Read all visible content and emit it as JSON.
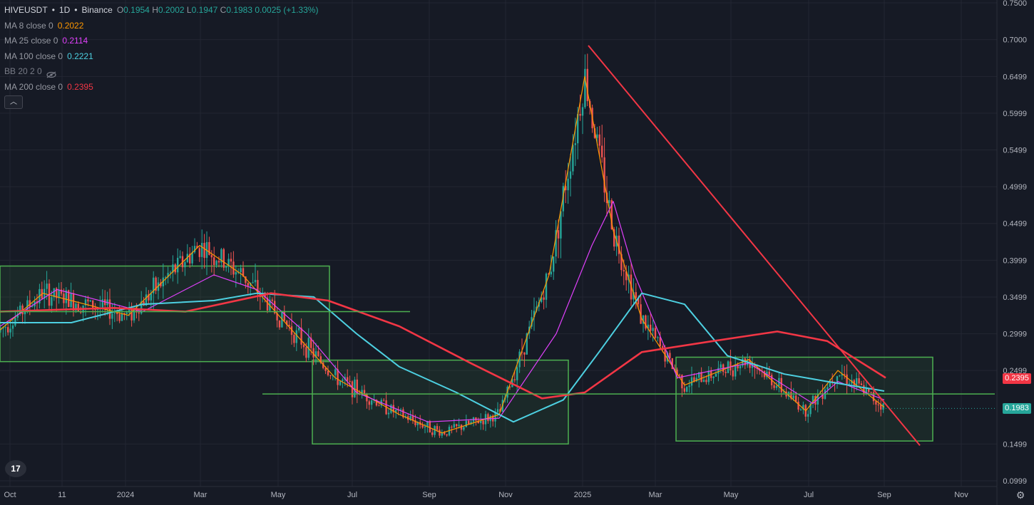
{
  "legend": {
    "symbol": "HIVEUSDT",
    "interval": "1D",
    "exchange": "Binance",
    "open_label": "O",
    "open": "0.1954",
    "high_label": "H",
    "high": "0.2002",
    "low_label": "L",
    "low": "0.1947",
    "close_label": "C",
    "close": "0.1983",
    "change": "0.0025 (+1.33%)",
    "indicators": [
      {
        "label": "MA 8 close 0",
        "value": "0.2022",
        "color": "#ff9800"
      },
      {
        "label": "MA 25 close 0",
        "value": "0.2114",
        "color": "#e040fb"
      },
      {
        "label": "MA 100 close 0",
        "value": "0.2221",
        "color": "#4dd0e1"
      },
      {
        "label": "BB 20 2 0",
        "value": "",
        "color": "#787b86"
      },
      {
        "label": "MA 200 close 0",
        "value": "0.2395",
        "color": "#f23645"
      }
    ]
  },
  "price_axis": {
    "ticks": [
      "0.7500",
      "0.7000",
      "0.6499",
      "0.5999",
      "0.5499",
      "0.4999",
      "0.4499",
      "0.3999",
      "0.3499",
      "0.2999",
      "0.2499",
      "0.1499",
      "0.0999"
    ],
    "tags": [
      {
        "text": "0.2395",
        "color": "#f23645"
      },
      {
        "text": "0.1983",
        "color": "#26a69a"
      }
    ]
  },
  "time_axis": {
    "labels": [
      "Oct",
      "11",
      "2024",
      "Mar",
      "May",
      "Jul",
      "Sep",
      "Nov",
      "2025",
      "Mar",
      "May",
      "Jul",
      "Sep",
      "Nov"
    ]
  },
  "colors": {
    "background": "#161a25",
    "grid": "#232632",
    "up": "#26a69a",
    "down": "#ef5350",
    "zone": "#4caf50",
    "trendline": "#f23645"
  },
  "chart_data": {
    "type": "line",
    "title": "",
    "symbol": "HIVEUSDT",
    "ylim": [
      0.09,
      0.755
    ],
    "x_labels": [
      "Oct",
      "11",
      "2024",
      "Mar",
      "May",
      "Jul",
      "Sep",
      "Nov",
      "2025",
      "Mar",
      "May",
      "Jul",
      "Sep",
      "Nov"
    ],
    "series": [
      {
        "name": "MA 8 close 0",
        "color": "#ff9800",
        "points": [
          [
            0,
            0.305
          ],
          [
            60,
            0.355
          ],
          [
            180,
            0.325
          ],
          [
            280,
            0.42
          ],
          [
            340,
            0.38
          ],
          [
            400,
            0.315
          ],
          [
            470,
            0.24
          ],
          [
            560,
            0.19
          ],
          [
            620,
            0.165
          ],
          [
            700,
            0.19
          ],
          [
            770,
            0.38
          ],
          [
            820,
            0.65
          ],
          [
            860,
            0.44
          ],
          [
            900,
            0.32
          ],
          [
            960,
            0.23
          ],
          [
            1050,
            0.265
          ],
          [
            1130,
            0.195
          ],
          [
            1175,
            0.25
          ],
          [
            1240,
            0.2
          ]
        ]
      },
      {
        "name": "MA 25 close 0",
        "color": "#e040fb",
        "points": [
          [
            0,
            0.31
          ],
          [
            80,
            0.36
          ],
          [
            200,
            0.33
          ],
          [
            300,
            0.38
          ],
          [
            360,
            0.36
          ],
          [
            430,
            0.3
          ],
          [
            500,
            0.22
          ],
          [
            600,
            0.18
          ],
          [
            700,
            0.185
          ],
          [
            780,
            0.3
          ],
          [
            830,
            0.42
          ],
          [
            860,
            0.48
          ],
          [
            890,
            0.38
          ],
          [
            950,
            0.24
          ],
          [
            1050,
            0.26
          ],
          [
            1140,
            0.205
          ],
          [
            1175,
            0.235
          ],
          [
            1240,
            0.21
          ]
        ]
      },
      {
        "name": "MA 100 close 0",
        "color": "#4dd0e1",
        "points": [
          [
            0,
            0.315
          ],
          [
            100,
            0.315
          ],
          [
            200,
            0.34
          ],
          [
            300,
            0.345
          ],
          [
            360,
            0.355
          ],
          [
            440,
            0.35
          ],
          [
            500,
            0.3
          ],
          [
            560,
            0.255
          ],
          [
            640,
            0.22
          ],
          [
            720,
            0.18
          ],
          [
            790,
            0.21
          ],
          [
            840,
            0.275
          ],
          [
            900,
            0.355
          ],
          [
            960,
            0.34
          ],
          [
            1020,
            0.27
          ],
          [
            1100,
            0.245
          ],
          [
            1160,
            0.235
          ],
          [
            1240,
            0.222
          ]
        ]
      },
      {
        "name": "MA 200 close 0",
        "color": "#f23645",
        "points": [
          [
            0,
            0.33
          ],
          [
            160,
            0.335
          ],
          [
            260,
            0.33
          ],
          [
            380,
            0.355
          ],
          [
            460,
            0.345
          ],
          [
            560,
            0.31
          ],
          [
            660,
            0.26
          ],
          [
            760,
            0.212
          ],
          [
            820,
            0.22
          ],
          [
            900,
            0.275
          ],
          [
            1000,
            0.29
          ],
          [
            1090,
            0.303
          ],
          [
            1160,
            0.29
          ],
          [
            1242,
            0.24
          ]
        ]
      }
    ],
    "trendline": {
      "from": [
        825,
        0.692
      ],
      "to": [
        1290,
        0.148
      ]
    },
    "horizontal_levels": [
      0.33,
      0.218
    ],
    "zones": [
      {
        "x1": 0,
        "x2": 462,
        "y_low": 0.262,
        "y_high": 0.392
      },
      {
        "x1": 438,
        "x2": 797,
        "y_low": 0.15,
        "y_high": 0.264
      },
      {
        "x1": 948,
        "x2": 1308,
        "y_low": 0.154,
        "y_high": 0.268
      }
    ],
    "last_price": 0.1983
  }
}
